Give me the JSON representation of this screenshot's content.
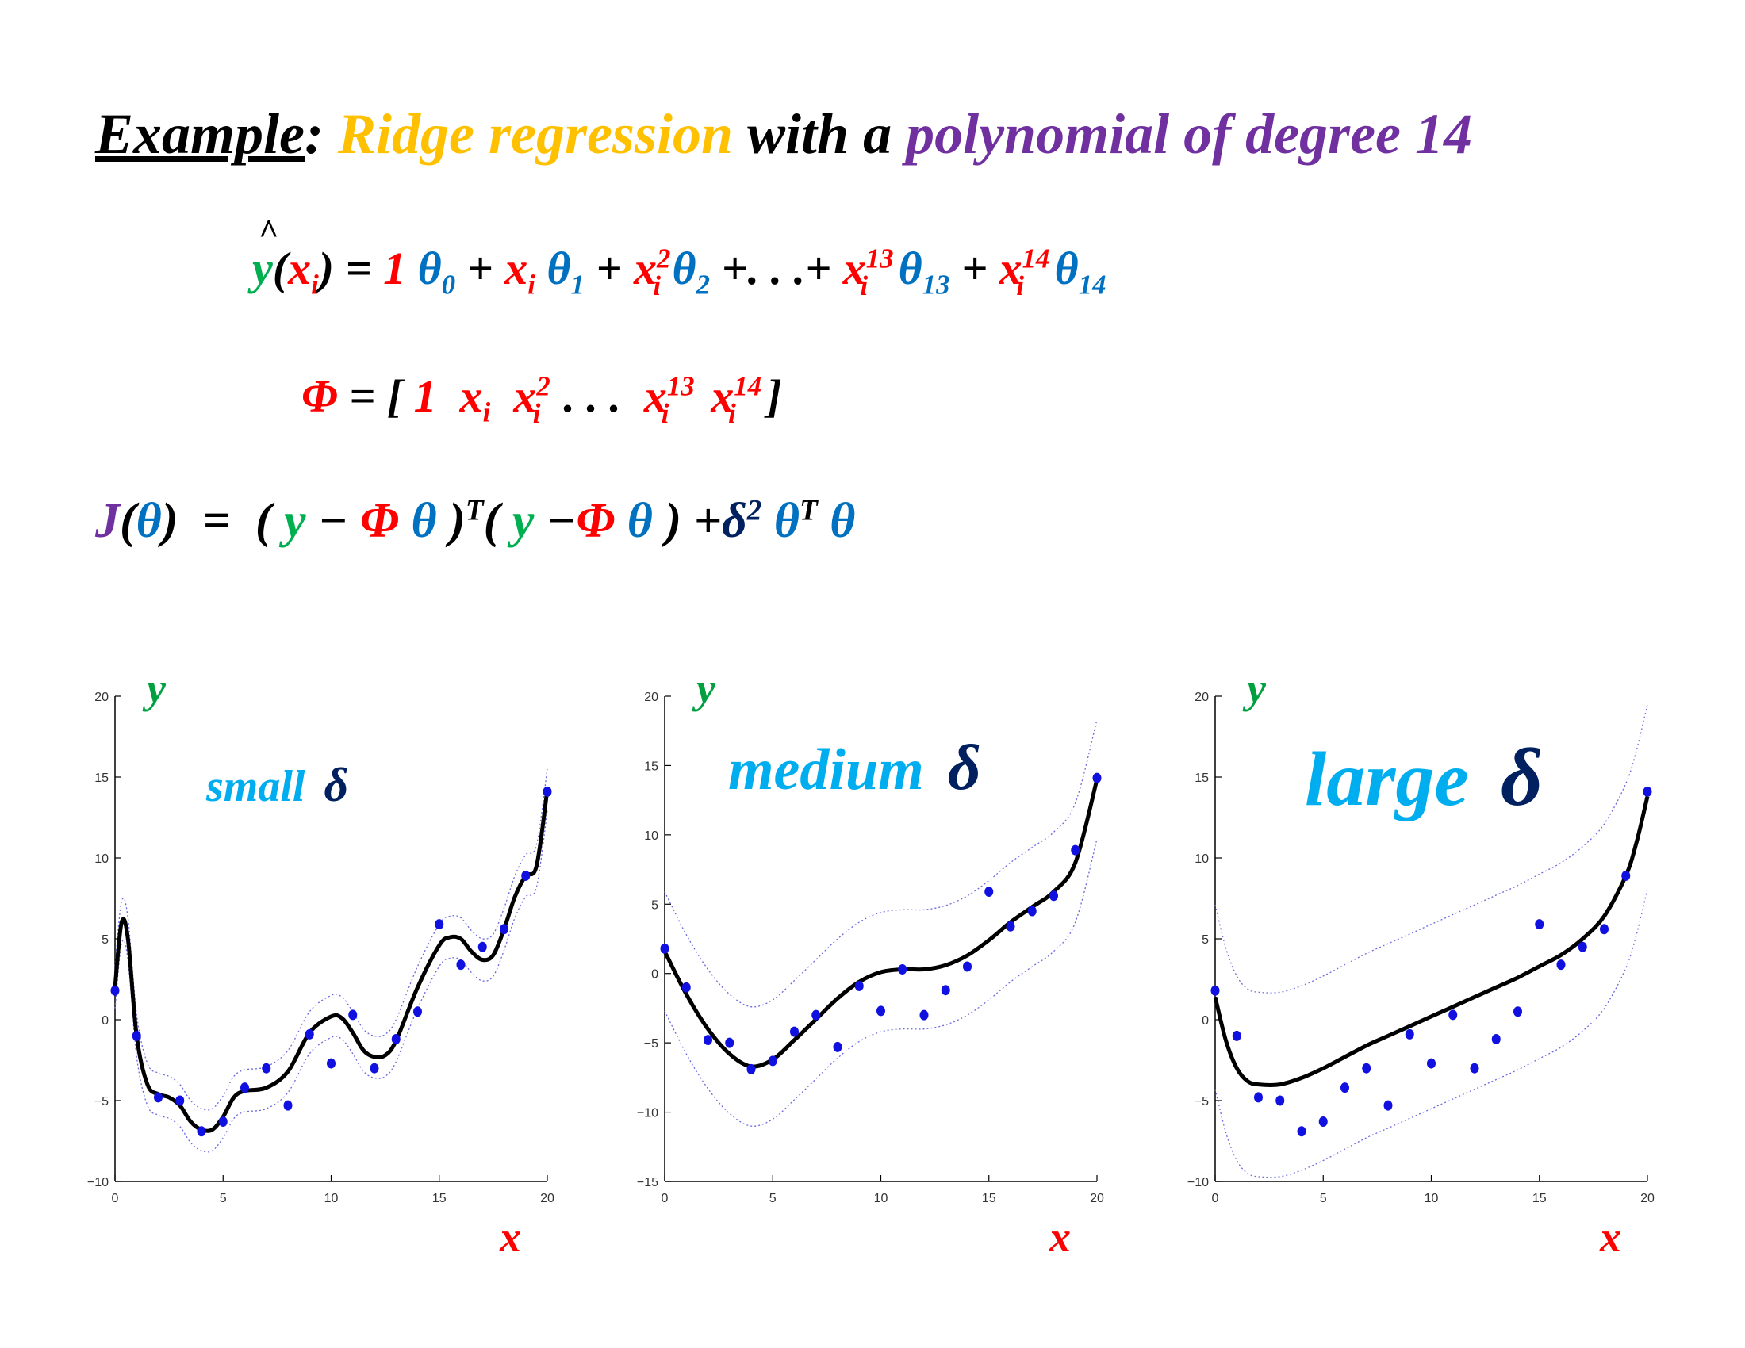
{
  "title": {
    "example": "Example",
    "colon": ":",
    "ridge": "Ridge regression",
    "with": "with a",
    "poly": "polynomial of degree 14"
  },
  "equations": {
    "pred": {
      "y": "y",
      "x": "x",
      "i": "i",
      "one": "1",
      "theta": "θ",
      "plus": "+",
      "eq": "=",
      "dots": ". . .",
      "sup2": "2",
      "sup13": "13",
      "sup14": "14",
      "sub0": "0",
      "sub1": "1",
      "sub2": "2",
      "sub13": "13",
      "sub14": "14"
    },
    "phi": {
      "phi": "Φ",
      "eq": "= [",
      "one": "1",
      "x": "x",
      "i": "i",
      "dots": ". . .",
      "close": "]",
      "sup2": "2",
      "sup13": "13",
      "sup14": "14"
    },
    "cost": {
      "J": "J",
      "open": "(",
      "theta": "θ",
      "close": ")",
      "eq": "=",
      "y": "y",
      "minus": "−",
      "phi": "Φ",
      "T": "T",
      "plus": "+",
      "delta": "δ",
      "sq": "2"
    }
  },
  "colors": {
    "points": "#1010E0",
    "fit": "#000000",
    "band": "#6B6BE0",
    "axis_label_y": "#00A040",
    "axis_label_x": "#FF0000",
    "label_word": "#00AEEF",
    "label_delta": "#002060"
  },
  "chart_data": [
    {
      "type": "scatter",
      "label_word": "small",
      "label_delta": "δ",
      "xlabel": "x",
      "ylabel": "y",
      "xlim": [
        0,
        20
      ],
      "ylim": [
        -10,
        20
      ],
      "xticks": [
        0,
        5,
        10,
        15,
        20
      ],
      "yticks": [
        -10,
        -5,
        0,
        5,
        10,
        15,
        20
      ],
      "points": {
        "x": [
          0,
          1,
          2,
          3,
          4,
          5,
          6,
          7,
          8,
          9,
          10,
          11,
          12,
          13,
          14,
          15,
          16,
          17,
          18,
          19,
          20
        ],
        "y": [
          1.8,
          -1.0,
          -4.8,
          -5.0,
          -6.9,
          -6.3,
          -4.2,
          -3.0,
          -5.3,
          -0.9,
          -2.7,
          0.3,
          -3.0,
          -1.2,
          0.5,
          5.9,
          3.4,
          4.5,
          5.6,
          8.9,
          14.1
        ]
      },
      "fit": {
        "x": [
          0,
          0.3,
          0.6,
          1,
          1.5,
          2,
          2.5,
          3,
          3.5,
          4,
          4.5,
          5,
          5.5,
          6,
          7,
          8,
          9,
          10,
          10.5,
          11,
          11.5,
          12,
          12.5,
          13,
          14,
          15,
          15.5,
          16,
          16.5,
          17,
          17.5,
          18,
          18.5,
          19,
          19.5,
          20
        ],
        "y": [
          2.0,
          6.0,
          5.0,
          -1.0,
          -4.0,
          -4.6,
          -4.8,
          -5.3,
          -6.3,
          -6.8,
          -6.8,
          -6.0,
          -4.8,
          -4.4,
          -4.2,
          -3.2,
          -0.8,
          0.2,
          0.1,
          -0.8,
          -1.9,
          -2.3,
          -2.2,
          -1.3,
          2.0,
          4.6,
          5.1,
          5.0,
          4.2,
          3.7,
          4.0,
          5.6,
          7.6,
          8.9,
          9.5,
          14.2
        ]
      },
      "band_width": 1.3
    },
    {
      "type": "scatter",
      "label_word": "medium",
      "label_delta": "δ",
      "xlabel": "x",
      "ylabel": "y",
      "xlim": [
        0,
        20
      ],
      "ylim": [
        -15,
        20
      ],
      "xticks": [
        0,
        5,
        10,
        15,
        20
      ],
      "yticks": [
        -15,
        -10,
        -5,
        0,
        5,
        10,
        15,
        20
      ],
      "points": {
        "x": [
          0,
          1,
          2,
          3,
          4,
          5,
          6,
          7,
          8,
          9,
          10,
          11,
          12,
          13,
          14,
          15,
          16,
          17,
          18,
          19,
          20
        ],
        "y": [
          1.8,
          -1.0,
          -4.8,
          -5.0,
          -6.9,
          -6.3,
          -4.2,
          -3.0,
          -5.3,
          -0.9,
          -2.7,
          0.3,
          -3.0,
          -1.2,
          0.5,
          5.9,
          3.4,
          4.5,
          5.6,
          8.9,
          14.1
        ]
      },
      "fit": {
        "x": [
          0,
          1,
          2,
          3,
          4,
          5,
          6,
          7,
          8,
          9,
          10,
          11,
          12,
          13,
          14,
          15,
          16,
          17,
          18,
          19,
          20
        ],
        "y": [
          1.6,
          -1.5,
          -4.0,
          -5.8,
          -6.7,
          -6.2,
          -4.8,
          -3.3,
          -1.8,
          -0.6,
          0.1,
          0.3,
          0.3,
          0.6,
          1.3,
          2.4,
          3.7,
          4.8,
          5.9,
          8.0,
          14.0
        ]
      },
      "band_width": 4.3
    },
    {
      "type": "scatter",
      "label_word": "large",
      "label_delta": "δ",
      "xlabel": "x",
      "ylabel": "y",
      "xlim": [
        0,
        20
      ],
      "ylim": [
        -10,
        20
      ],
      "xticks": [
        0,
        5,
        10,
        15,
        20
      ],
      "yticks": [
        -10,
        -5,
        0,
        5,
        10,
        15,
        20
      ],
      "points": {
        "x": [
          0,
          1,
          2,
          3,
          4,
          5,
          6,
          7,
          8,
          9,
          10,
          11,
          12,
          13,
          14,
          15,
          16,
          17,
          18,
          19,
          20
        ],
        "y": [
          1.8,
          -1.0,
          -4.8,
          -5.0,
          -6.9,
          -6.3,
          -4.2,
          -3.0,
          -5.3,
          -0.9,
          -2.7,
          0.3,
          -3.0,
          -1.2,
          0.5,
          5.9,
          3.4,
          4.5,
          5.6,
          8.9,
          14.1
        ]
      },
      "fit": {
        "x": [
          0,
          0.5,
          1,
          1.5,
          2,
          3,
          4,
          5,
          6,
          7,
          8,
          9,
          10,
          11,
          12,
          13,
          14,
          15,
          16,
          17,
          18,
          19,
          19.5,
          20
        ],
        "y": [
          1.4,
          -1.3,
          -3.0,
          -3.8,
          -4.0,
          -4.0,
          -3.6,
          -3.0,
          -2.3,
          -1.6,
          -1.0,
          -0.4,
          0.2,
          0.8,
          1.4,
          2.0,
          2.6,
          3.3,
          4.0,
          5.0,
          6.4,
          8.9,
          11.0,
          13.8
        ]
      },
      "band_width": 5.7
    }
  ]
}
